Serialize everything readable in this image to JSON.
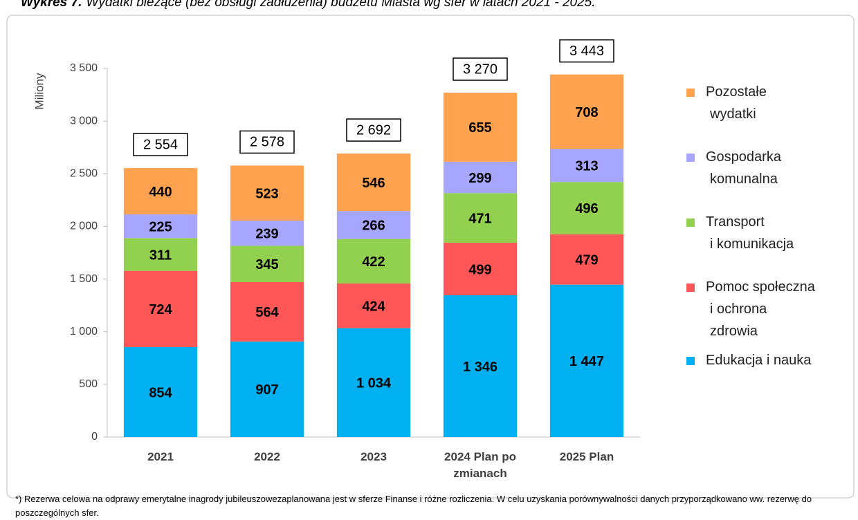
{
  "chart_data": {
    "type": "stacked_bar",
    "title_label": "Wykres 7.",
    "title": "Wydatki bieżące (bez obsługi zadłużenia) budżetu Miasta wg sfer w latach 2021 - 2025.",
    "y_axis_label": "Miliony",
    "categories": [
      "2021",
      "2022",
      "2023",
      "2024 Plan po zmianach",
      "2025 Plan"
    ],
    "series": [
      {
        "name": "Edukacja i nauka",
        "color": "#00b0f0",
        "values": [
          854,
          907,
          1034,
          1346,
          1447
        ],
        "value_labels": [
          "854",
          "907",
          "1 034",
          "1 346",
          "1 447"
        ]
      },
      {
        "name": "Pomoc społeczna i ochrona zdrowia",
        "color": "#ff5757",
        "values": [
          724,
          564,
          424,
          499,
          479
        ]
      },
      {
        "name": "Transport i komunikacja",
        "color": "#92d050",
        "values": [
          311,
          345,
          422,
          471,
          496
        ]
      },
      {
        "name": "Gospodarka komunalna",
        "color": "#a6a6ff",
        "values": [
          225,
          239,
          266,
          299,
          313
        ]
      },
      {
        "name": "Pozostałe wydatki",
        "color": "#ffa24f",
        "values": [
          440,
          523,
          546,
          655,
          708
        ]
      }
    ],
    "totals": {
      "values": [
        2554,
        2578,
        2692,
        3270,
        3443
      ],
      "value_labels": [
        "2 554",
        "2 578",
        "2 692",
        "3 270",
        "3 443"
      ]
    },
    "ylim": [
      0,
      3500
    ],
    "yticks": [
      0,
      500,
      {
        "value": 1000,
        "label": "1 000"
      },
      {
        "value": 1500,
        "label": "1 500"
      },
      {
        "value": 2000,
        "label": "2 000"
      },
      {
        "value": 2500,
        "label": "2 500"
      },
      {
        "value": 3000,
        "label": "3 000"
      },
      {
        "value": 3500,
        "label": "3 500"
      }
    ],
    "legend": "right",
    "grid": false,
    "footnote": "*) Rezerwa celowa na odprawy emerytalne inagrody jubileuszowezaplanowana jest w sferze Finanse i różne rozliczenia. W celu uzyskania porównywalności danych przyporządkowano ww. rezerwę do poszczególnych sfer."
  }
}
